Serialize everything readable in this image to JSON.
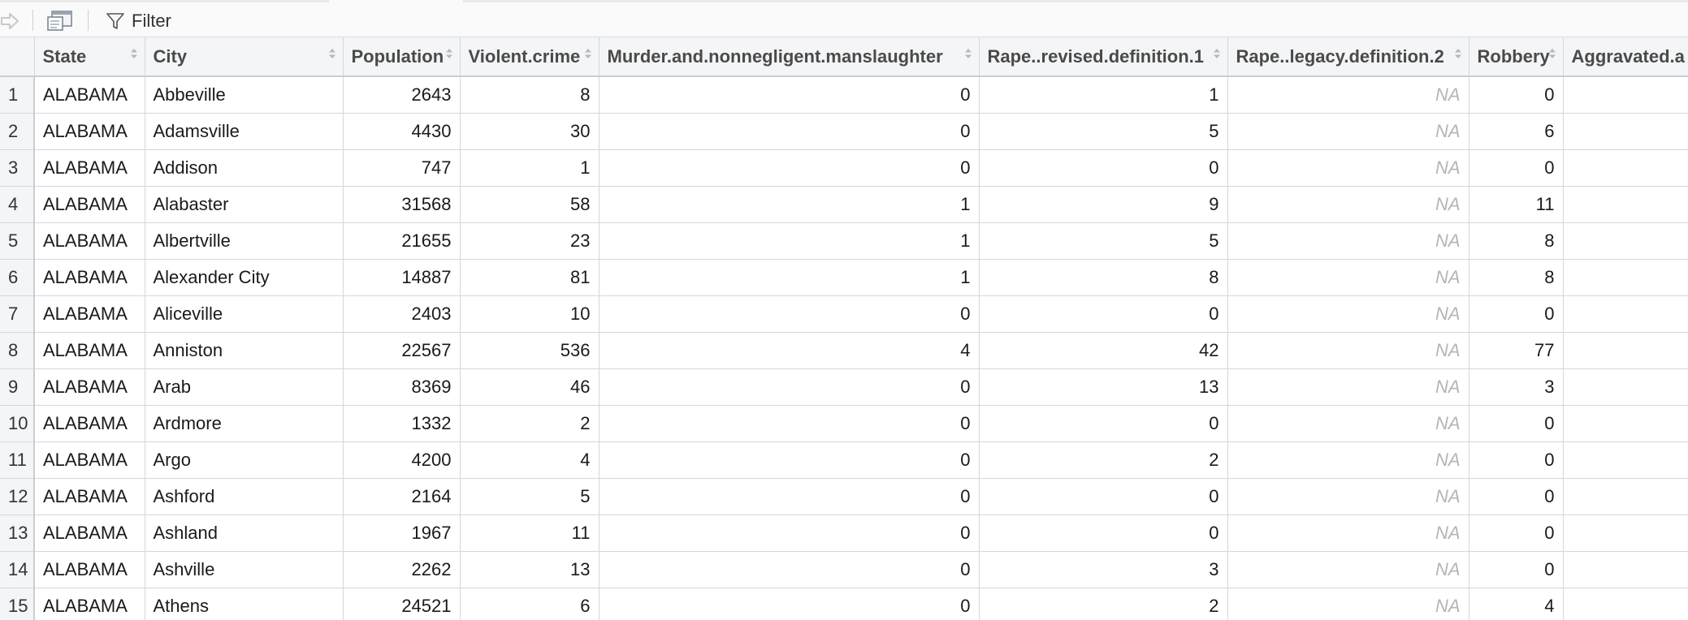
{
  "toolbar": {
    "forward_icon": "forward-arrow-icon",
    "show_window_icon": "show-in-new-window-icon",
    "filter_label": "Filter"
  },
  "columns": [
    {
      "key": "state",
      "label": "State",
      "width": 0
    },
    {
      "key": "city",
      "label": "City"
    },
    {
      "key": "population",
      "label": "Population"
    },
    {
      "key": "violent",
      "label": "Violent.crime"
    },
    {
      "key": "murder",
      "label": "Murder.and.nonnegligent.manslaughter"
    },
    {
      "key": "rape_rev",
      "label": "Rape..revised.definition.1"
    },
    {
      "key": "rape_leg",
      "label": "Rape..legacy.definition.2"
    },
    {
      "key": "robbery",
      "label": "Robbery"
    },
    {
      "key": "aggravated",
      "label": "Aggravated.a"
    }
  ],
  "rows": [
    {
      "n": "1",
      "state": "ALABAMA",
      "city": "Abbeville",
      "population": "2643",
      "violent": "8",
      "murder": "0",
      "rape_rev": "1",
      "rape_leg": "NA",
      "robbery": "0",
      "aggravated": ""
    },
    {
      "n": "2",
      "state": "ALABAMA",
      "city": "Adamsville",
      "population": "4430",
      "violent": "30",
      "murder": "0",
      "rape_rev": "5",
      "rape_leg": "NA",
      "robbery": "6",
      "aggravated": ""
    },
    {
      "n": "3",
      "state": "ALABAMA",
      "city": "Addison",
      "population": "747",
      "violent": "1",
      "murder": "0",
      "rape_rev": "0",
      "rape_leg": "NA",
      "robbery": "0",
      "aggravated": ""
    },
    {
      "n": "4",
      "state": "ALABAMA",
      "city": "Alabaster",
      "population": "31568",
      "violent": "58",
      "murder": "1",
      "rape_rev": "9",
      "rape_leg": "NA",
      "robbery": "11",
      "aggravated": ""
    },
    {
      "n": "5",
      "state": "ALABAMA",
      "city": "Albertville",
      "population": "21655",
      "violent": "23",
      "murder": "1",
      "rape_rev": "5",
      "rape_leg": "NA",
      "robbery": "8",
      "aggravated": ""
    },
    {
      "n": "6",
      "state": "ALABAMA",
      "city": "Alexander City",
      "population": "14887",
      "violent": "81",
      "murder": "1",
      "rape_rev": "8",
      "rape_leg": "NA",
      "robbery": "8",
      "aggravated": ""
    },
    {
      "n": "7",
      "state": "ALABAMA",
      "city": "Aliceville",
      "population": "2403",
      "violent": "10",
      "murder": "0",
      "rape_rev": "0",
      "rape_leg": "NA",
      "robbery": "0",
      "aggravated": ""
    },
    {
      "n": "8",
      "state": "ALABAMA",
      "city": "Anniston",
      "population": "22567",
      "violent": "536",
      "murder": "4",
      "rape_rev": "42",
      "rape_leg": "NA",
      "robbery": "77",
      "aggravated": ""
    },
    {
      "n": "9",
      "state": "ALABAMA",
      "city": "Arab",
      "population": "8369",
      "violent": "46",
      "murder": "0",
      "rape_rev": "13",
      "rape_leg": "NA",
      "robbery": "3",
      "aggravated": ""
    },
    {
      "n": "10",
      "state": "ALABAMA",
      "city": "Ardmore",
      "population": "1332",
      "violent": "2",
      "murder": "0",
      "rape_rev": "0",
      "rape_leg": "NA",
      "robbery": "0",
      "aggravated": ""
    },
    {
      "n": "11",
      "state": "ALABAMA",
      "city": "Argo",
      "population": "4200",
      "violent": "4",
      "murder": "0",
      "rape_rev": "2",
      "rape_leg": "NA",
      "robbery": "0",
      "aggravated": ""
    },
    {
      "n": "12",
      "state": "ALABAMA",
      "city": "Ashford",
      "population": "2164",
      "violent": "5",
      "murder": "0",
      "rape_rev": "0",
      "rape_leg": "NA",
      "robbery": "0",
      "aggravated": ""
    },
    {
      "n": "13",
      "state": "ALABAMA",
      "city": "Ashland",
      "population": "1967",
      "violent": "11",
      "murder": "0",
      "rape_rev": "0",
      "rape_leg": "NA",
      "robbery": "0",
      "aggravated": ""
    },
    {
      "n": "14",
      "state": "ALABAMA",
      "city": "Ashville",
      "population": "2262",
      "violent": "13",
      "murder": "0",
      "rape_rev": "3",
      "rape_leg": "NA",
      "robbery": "0",
      "aggravated": ""
    },
    {
      "n": "15",
      "state": "ALABAMA",
      "city": "Athens",
      "population": "24521",
      "violent": "6",
      "murder": "0",
      "rape_rev": "2",
      "rape_leg": "NA",
      "robbery": "4",
      "aggravated": ""
    }
  ]
}
